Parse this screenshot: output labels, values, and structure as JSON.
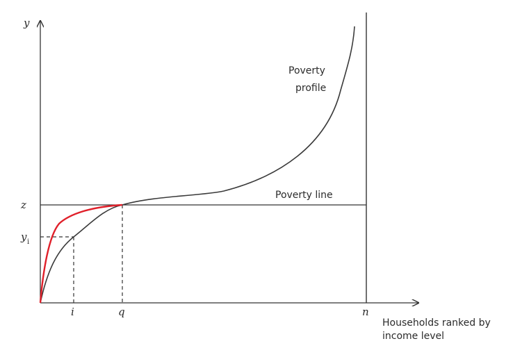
{
  "labels": {
    "y_axis": "y",
    "z": "z",
    "y_i_base": "y",
    "y_i_sub": "i",
    "i": "i",
    "q": "q",
    "n": "n",
    "x_axis_line1": "Households ranked by",
    "x_axis_line2": "income level",
    "poverty_profile_line1": "Poverty",
    "poverty_profile_line2": "profile",
    "poverty_line": "Poverty line"
  },
  "colors": {
    "axis": "#333333",
    "curve": "#3a3a3a",
    "highlight_curve": "#e0202a"
  }
}
